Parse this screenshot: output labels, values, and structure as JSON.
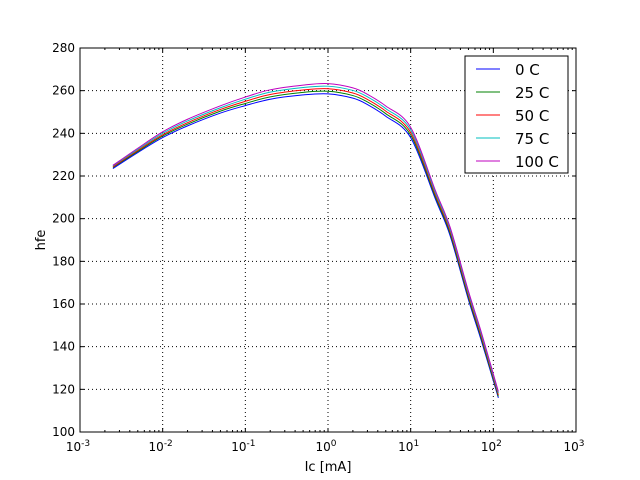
{
  "chart_data": {
    "type": "line",
    "title": "",
    "xlabel": "Ic [mA]",
    "ylabel": "hfe",
    "xscale": "log",
    "xlim": [
      0.001,
      1000
    ],
    "ylim": [
      100,
      280
    ],
    "grid": true,
    "legend_position": "top-right",
    "x_tick_labels": [
      {
        "base": "10",
        "exp": "-3",
        "value": 0.001
      },
      {
        "base": "10",
        "exp": "-2",
        "value": 0.01
      },
      {
        "base": "10",
        "exp": "-1",
        "value": 0.1
      },
      {
        "base": "10",
        "exp": "0",
        "value": 1
      },
      {
        "base": "10",
        "exp": "1",
        "value": 10
      },
      {
        "base": "10",
        "exp": "2",
        "value": 100
      },
      {
        "base": "10",
        "exp": "3",
        "value": 1000
      }
    ],
    "y_ticks": [
      "100",
      "120",
      "140",
      "160",
      "180",
      "200",
      "220",
      "240",
      "260",
      "280"
    ],
    "x": [
      0.0025,
      0.005,
      0.01,
      0.02,
      0.05,
      0.1,
      0.2,
      0.5,
      1,
      2,
      3,
      5,
      10,
      20,
      30,
      50,
      70,
      100,
      115
    ],
    "series": [
      {
        "name": "0 C",
        "color": "#0000ff",
        "values": [
          223.5,
          231,
          238,
          243.5,
          249.5,
          253,
          256,
          258,
          258.5,
          256.5,
          253.5,
          248,
          238,
          209,
          192,
          162,
          144,
          124,
          116
        ]
      },
      {
        "name": "25 C",
        "color": "#008000",
        "values": [
          224,
          231.5,
          238.7,
          244.3,
          250.4,
          254,
          257.1,
          259.2,
          259.7,
          257.7,
          254.7,
          249.2,
          239.2,
          210,
          193,
          163,
          145,
          124.8,
          116.7
        ]
      },
      {
        "name": "50 C",
        "color": "#ff0000",
        "values": [
          224.3,
          232,
          239.3,
          245,
          251.2,
          255,
          258.2,
          260.3,
          260.9,
          258.9,
          255.9,
          250.4,
          240.4,
          211,
          194,
          164,
          146,
          125.6,
          117.4
        ]
      },
      {
        "name": "75 C",
        "color": "#00bfbf",
        "values": [
          224.7,
          232.5,
          240,
          245.8,
          252,
          256,
          259.3,
          261.5,
          262.1,
          260.1,
          257.1,
          251.6,
          241.6,
          212,
          195,
          165,
          147,
          126.4,
          118.2
        ]
      },
      {
        "name": "100 C",
        "color": "#bf00bf",
        "values": [
          225,
          233,
          240.7,
          246.6,
          252.9,
          257,
          260.4,
          262.6,
          263.3,
          261.3,
          258.3,
          252.8,
          242.8,
          213,
          196,
          166,
          148,
          127.2,
          119
        ]
      }
    ]
  }
}
